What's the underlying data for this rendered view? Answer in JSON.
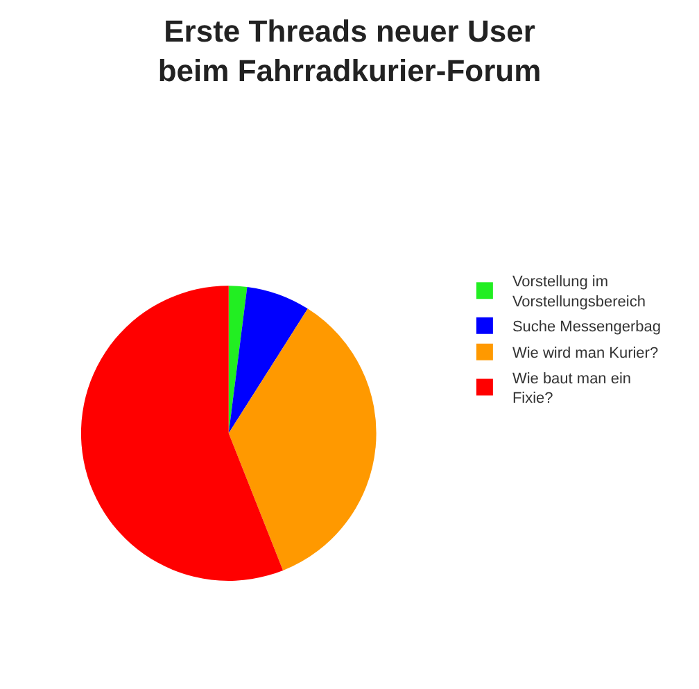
{
  "chart_data": {
    "type": "pie",
    "title": "Erste Threads neuer User beim Fahrradkurier-Forum",
    "categories": [
      "Vorstellung im Vorstellungsbereich",
      "Suche Messengerbag",
      "Wie wird man Kurier?",
      "Wie baut man ein Fixie?"
    ],
    "values": [
      2,
      7,
      35,
      56
    ],
    "colors": [
      "#22ee22",
      "#0000ff",
      "#ff9900",
      "#ff0000"
    ],
    "legend": "right"
  }
}
